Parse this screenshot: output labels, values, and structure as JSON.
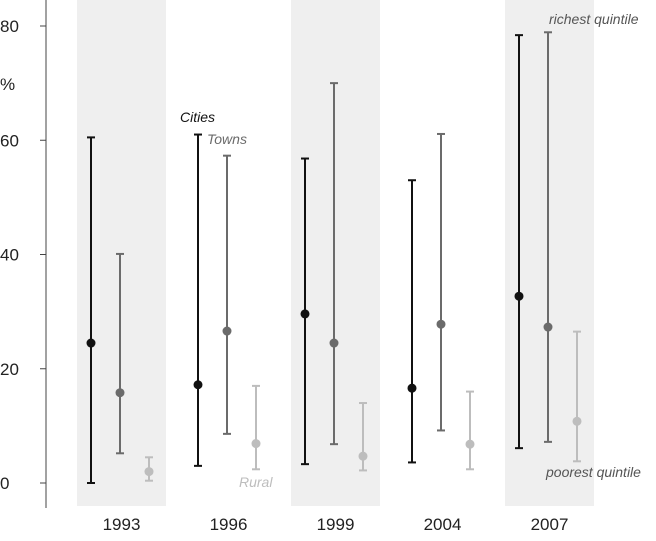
{
  "chart_data": {
    "type": "errorbar",
    "y_unit_label": "%",
    "ylim": [
      0,
      80
    ],
    "y_ticks": [
      0,
      20,
      40,
      60,
      80
    ],
    "categories": [
      "1993",
      "1996",
      "1999",
      "2004",
      "2007"
    ],
    "shaded_categories": [
      "1993",
      "1999",
      "2007"
    ],
    "series": [
      {
        "key": "cities",
        "color": "#111111",
        "points": [
          {
            "mid": 24.5,
            "low": 0.0,
            "high": 60.5
          },
          {
            "mid": 17.2,
            "low": 3.0,
            "high": 61.0
          },
          {
            "mid": 29.6,
            "low": 3.3,
            "high": 56.8
          },
          {
            "mid": 16.6,
            "low": 3.6,
            "high": 53.0
          },
          {
            "mid": 32.7,
            "low": 6.1,
            "high": 78.4
          }
        ]
      },
      {
        "key": "towns",
        "color": "#6b6b6b",
        "points": [
          {
            "mid": 15.8,
            "low": 5.2,
            "high": 40.1
          },
          {
            "mid": 26.6,
            "low": 8.6,
            "high": 57.3
          },
          {
            "mid": 24.5,
            "low": 6.8,
            "high": 70.0
          },
          {
            "mid": 27.8,
            "low": 9.2,
            "high": 61.1
          },
          {
            "mid": 27.3,
            "low": 7.2,
            "high": 78.9
          }
        ]
      },
      {
        "key": "rural",
        "color": "#bdbdbd",
        "points": [
          {
            "mid": 2.0,
            "low": 0.4,
            "high": 4.5
          },
          {
            "mid": 6.9,
            "low": 2.4,
            "high": 17.0
          },
          {
            "mid": 4.7,
            "low": 2.2,
            "high": 14.0
          },
          {
            "mid": 6.8,
            "low": 2.4,
            "high": 16.0
          },
          {
            "mid": 10.8,
            "low": 3.8,
            "high": 26.5
          }
        ]
      }
    ],
    "annotations": {
      "cities": "Cities",
      "towns": "Towns",
      "rural": "Rural",
      "richest": "richest quintile",
      "poorest": "poorest quintile"
    }
  }
}
